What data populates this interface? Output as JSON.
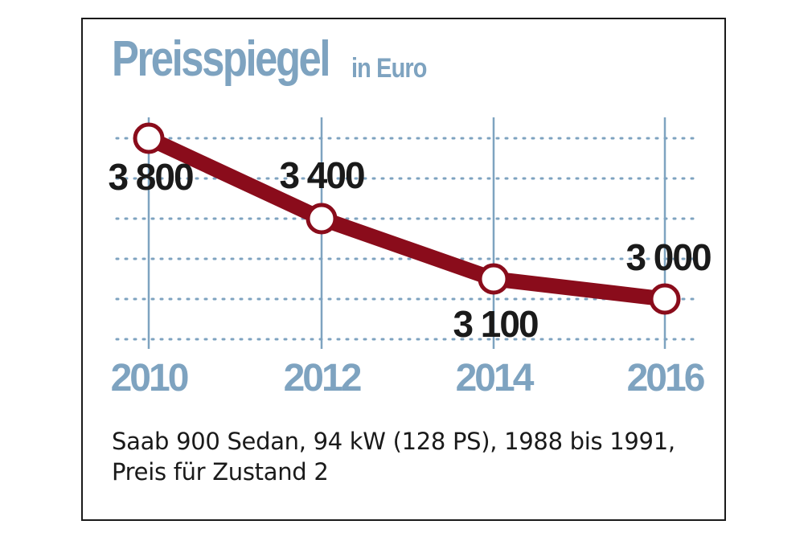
{
  "chart_data": {
    "type": "line",
    "title": "Preisspiegel",
    "subtitle": "in Euro",
    "categories": [
      "2010",
      "2012",
      "2014",
      "2016"
    ],
    "values": [
      3800,
      3400,
      3100,
      3000
    ],
    "value_labels": [
      "3 800",
      "3 400",
      "3 100",
      "3 000"
    ],
    "ylim": [
      2800,
      3850
    ],
    "grid": true,
    "xlabel": "",
    "ylabel": ""
  },
  "caption": {
    "line1": "Saab 900 Sedan, 94 kW (128 PS), 1988 bis 1991,",
    "line2": "Preis für Zustand 2"
  },
  "colors": {
    "line": "#8a0c1b",
    "accent": "#7ea3c0",
    "grid": "#7ea3c0",
    "text": "#1a1a1a"
  }
}
